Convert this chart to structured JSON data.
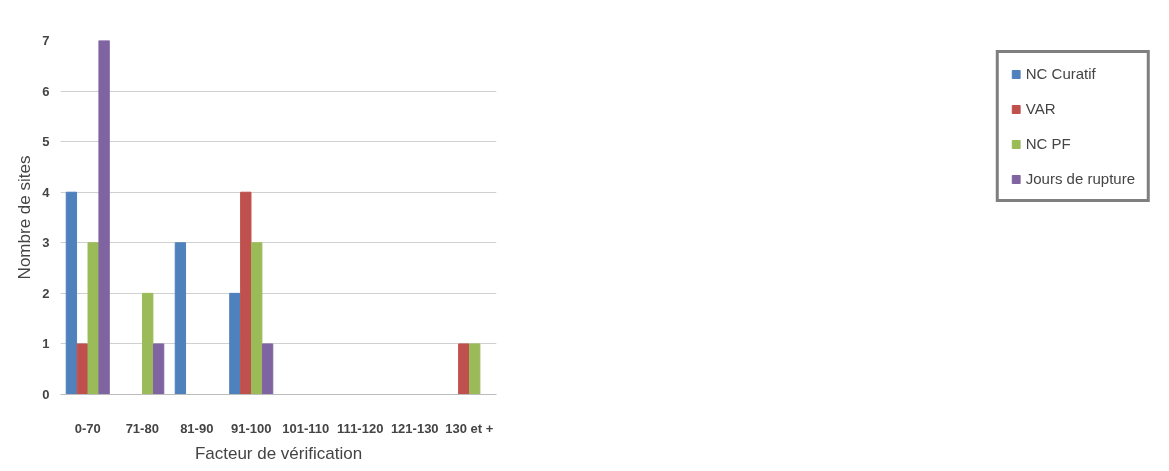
{
  "chart_data": {
    "type": "bar",
    "xlabel": "Facteur de vérification",
    "ylabel": "Nombre de sites",
    "categories": [
      "0-70",
      "71-80",
      "81-90",
      "91-100",
      "101-110",
      "111-120",
      "121-130",
      "130 et +"
    ],
    "series": [
      {
        "name": "NC Curatif",
        "color": "#4f81bd",
        "values": [
          4,
          0,
          3,
          2,
          0,
          0,
          0,
          0
        ]
      },
      {
        "name": "VAR",
        "color": "#c0504d",
        "values": [
          1,
          0,
          0,
          4,
          0,
          0,
          0,
          1
        ]
      },
      {
        "name": "NC PF",
        "color": "#9bbb59",
        "values": [
          3,
          2,
          0,
          3,
          0,
          0,
          0,
          1
        ]
      },
      {
        "name": "Jours de rupture",
        "color": "#8064a2",
        "values": [
          7,
          1,
          0,
          1,
          0,
          0,
          0,
          0
        ]
      }
    ],
    "ylim": [
      0,
      7
    ],
    "yticks": [
      0,
      1,
      2,
      3,
      4,
      5,
      6,
      7
    ],
    "grid": "y",
    "legend": "right"
  }
}
